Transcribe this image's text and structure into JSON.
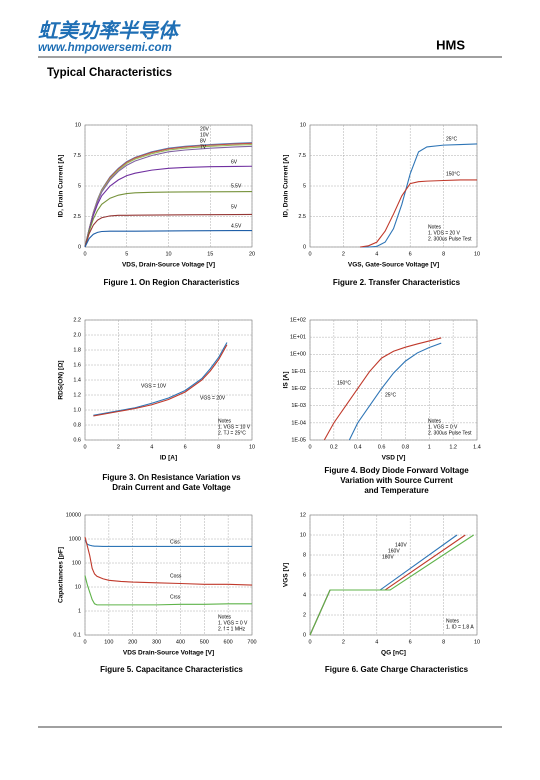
{
  "header": {
    "logo_cn": "虹美功率半导体",
    "website": "www.hmpowersemi.com",
    "part": "HMS"
  },
  "section_title": "Typical Characteristics",
  "chart_data": [
    {
      "type": "line",
      "caption": [
        "Figure 1. On Region Characteristics"
      ],
      "xlabel": "VDS, Drain-Source Voltage  [V]",
      "ylabel": "ID, Drain Current  [A]",
      "xlim": [
        0,
        20
      ],
      "ylim": [
        0,
        10
      ],
      "xticks": [
        0,
        5,
        10,
        15,
        20
      ],
      "yticks": [
        0,
        2.5,
        5,
        7.5,
        10
      ],
      "grid": true,
      "x": [
        0,
        0.5,
        1,
        1.5,
        2,
        3,
        4,
        5,
        6,
        8,
        10,
        12,
        15,
        18,
        20
      ],
      "series": [
        {
          "name": "20V",
          "color": "#4a7ebb",
          "values": [
            0,
            1.5,
            2.85,
            3.9,
            4.7,
            5.75,
            6.45,
            7.0,
            7.35,
            7.8,
            8.1,
            8.25,
            8.4,
            8.5,
            8.55
          ]
        },
        {
          "name": "10V",
          "color": "#c0504d",
          "values": [
            0,
            1.45,
            2.8,
            3.85,
            4.65,
            5.7,
            6.4,
            6.95,
            7.3,
            7.75,
            8.05,
            8.2,
            8.35,
            8.45,
            8.5
          ]
        },
        {
          "name": "8V",
          "color": "#9bbb59",
          "values": [
            0,
            1.45,
            2.75,
            3.8,
            4.6,
            5.6,
            6.3,
            6.85,
            7.2,
            7.65,
            7.95,
            8.1,
            8.25,
            8.35,
            8.4
          ]
        },
        {
          "name": "7V",
          "color": "#8064a2",
          "values": [
            0,
            1.4,
            2.7,
            3.7,
            4.5,
            5.5,
            6.2,
            6.7,
            7.05,
            7.5,
            7.8,
            7.95,
            8.1,
            8.2,
            8.25
          ]
        },
        {
          "name": "6V",
          "color": "#7030a0",
          "values": [
            0,
            1.4,
            2.6,
            3.5,
            4.2,
            5.0,
            5.5,
            5.85,
            6.05,
            6.3,
            6.45,
            6.52,
            6.58,
            6.6,
            6.62
          ]
        },
        {
          "name": "5.5V",
          "color": "#77933c",
          "values": [
            0,
            1.3,
            2.3,
            3.0,
            3.5,
            4.0,
            4.25,
            4.38,
            4.44,
            4.48,
            4.5,
            4.51,
            4.52,
            4.53,
            4.54
          ]
        },
        {
          "name": "5V",
          "color": "#953735",
          "values": [
            0,
            1.1,
            1.8,
            2.2,
            2.4,
            2.55,
            2.6,
            2.6,
            2.61,
            2.62,
            2.63,
            2.64,
            2.65,
            2.66,
            2.67
          ]
        },
        {
          "name": "4.5V",
          "color": "#1f5fa8",
          "values": [
            0,
            0.7,
            1.05,
            1.2,
            1.27,
            1.3,
            1.3,
            1.3,
            1.3,
            1.31,
            1.32,
            1.33,
            1.34,
            1.35,
            1.35
          ]
        }
      ]
    },
    {
      "type": "line",
      "caption": [
        "Figure 2. Transfer Characteristics"
      ],
      "xlabel": "VGS, Gate-Source Voltage [V]",
      "ylabel": "ID, Drain Current [A]",
      "xlim": [
        0,
        10
      ],
      "ylim": [
        0,
        10
      ],
      "xticks": [
        0,
        2,
        4,
        6,
        8,
        10
      ],
      "yticks": [
        0,
        2.5,
        5,
        7.5,
        10
      ],
      "grid": true,
      "x": [
        3,
        3.5,
        4,
        4.5,
        5,
        5.5,
        6,
        6.5,
        7,
        8,
        9,
        10
      ],
      "series": [
        {
          "name": "25°C",
          "color": "#2e75b6",
          "values": [
            0,
            0,
            0.05,
            0.4,
            1.5,
            3.5,
            6.0,
            7.8,
            8.2,
            8.35,
            8.4,
            8.45
          ]
        },
        {
          "name": "150°C",
          "color": "#c0392b",
          "values": [
            0,
            0.1,
            0.4,
            1.3,
            2.7,
            4.2,
            5.2,
            5.35,
            5.4,
            5.45,
            5.5,
            5.5
          ]
        }
      ],
      "notes": [
        "Notes",
        "1. VDS = 20 V",
        "2. 300us Pulse Test"
      ]
    },
    {
      "type": "line",
      "caption": [
        "Figure 3. On Resistance Variation vs",
        "Drain Current and Gate Voltage"
      ],
      "xlabel": "ID  [A]",
      "ylabel": "RDS(ON) [Ω]",
      "xlim": [
        0,
        10
      ],
      "ylim": [
        0.6,
        2.2
      ],
      "xticks": [
        0,
        2,
        4,
        6,
        8,
        10
      ],
      "yticks": [
        0.6,
        0.8,
        {
          "value": 1,
          "label": "1.0"
        },
        1.2,
        1.4,
        1.6,
        1.8,
        {
          "value": 2,
          "label": "2.0"
        },
        2.2
      ],
      "grid": true,
      "x": [
        0.5,
        1,
        2,
        3,
        4,
        5,
        6,
        7,
        7.5,
        8,
        8.2,
        8.5
      ],
      "series": [
        {
          "name": "VGS = 10V",
          "color": "#2e75b6",
          "values": [
            0.93,
            0.95,
            0.99,
            1.03,
            1.09,
            1.16,
            1.26,
            1.42,
            1.55,
            1.7,
            1.78,
            1.9
          ]
        },
        {
          "name": "VGS = 20V",
          "color": "#c0392b",
          "values": [
            0.92,
            0.94,
            0.98,
            1.02,
            1.07,
            1.14,
            1.24,
            1.4,
            1.52,
            1.67,
            1.75,
            1.87
          ]
        }
      ],
      "notes": [
        "Notes",
        "1. VGS = 10 V",
        "2. TJ = 25°C"
      ]
    },
    {
      "type": "line",
      "caption": [
        "Figure 4. Body Diode Forward Voltage",
        "Variation with Source Current",
        "and Temperature"
      ],
      "xlabel": "VSD [V]",
      "ylabel": "IS [A]",
      "xlim": [
        0,
        1.4
      ],
      "ylim": [
        1e-05,
        100
      ],
      "ylog": true,
      "xticks": [
        0,
        0.2,
        0.4,
        0.6,
        0.8,
        1,
        1.2,
        1.4
      ],
      "yticks": [
        {
          "value": 1e-05,
          "label": "1E-05"
        },
        {
          "value": 0.0001,
          "label": "1E-04"
        },
        {
          "value": 0.001,
          "label": "1E-03"
        },
        {
          "value": 0.01,
          "label": "1E-02"
        },
        {
          "value": 0.1,
          "label": "1E-01"
        },
        {
          "value": 1,
          "label": "1E+00"
        },
        {
          "value": 10,
          "label": "1E+01"
        },
        {
          "value": 100,
          "label": "1E+02"
        }
      ],
      "grid": true,
      "series": [
        {
          "name": "150°C",
          "color": "#c0392b",
          "x": [
            0.12,
            0.2,
            0.3,
            0.4,
            0.5,
            0.6,
            0.7,
            0.8,
            0.9,
            1.0,
            1.1
          ],
          "values": [
            1e-05,
            0.0001,
            0.001,
            0.01,
            0.1,
            0.6,
            1.5,
            2.6,
            4,
            6,
            9
          ]
        },
        {
          "name": "25°C",
          "color": "#2e75b6",
          "x": [
            0.33,
            0.4,
            0.5,
            0.6,
            0.7,
            0.8,
            0.9,
            1.0,
            1.1
          ],
          "values": [
            1e-05,
            0.0001,
            0.001,
            0.01,
            0.08,
            0.4,
            1.2,
            2.5,
            4.5
          ]
        }
      ],
      "notes": [
        "Notes",
        "1. VGS = 0 V",
        "2. 300us Pulse Test"
      ]
    },
    {
      "type": "line",
      "caption": [
        "Figure 5. Capacitance Characteristics"
      ],
      "xlabel": "VDS Drain-Source Voltage [V]",
      "ylabel": "Capacitances [pF]",
      "xlim": [
        0,
        700
      ],
      "ylim": [
        0.1,
        10000
      ],
      "ylog": true,
      "xticks": [
        0,
        100,
        200,
        300,
        400,
        500,
        600,
        700
      ],
      "yticks": [
        0.1,
        1,
        10,
        100,
        1000,
        10000
      ],
      "grid": true,
      "x": [
        0,
        10,
        20,
        30,
        40,
        50,
        75,
        100,
        150,
        200,
        300,
        400,
        500,
        600,
        700
      ],
      "series": [
        {
          "name": "Ciss",
          "color": "#2e75b6",
          "values": [
            900,
            600,
            550,
            520,
            500,
            500,
            490,
            490,
            490,
            490,
            490,
            490,
            490,
            490,
            490
          ]
        },
        {
          "name": "Coss",
          "color": "#c0392b",
          "values": [
            1200,
            500,
            200,
            60,
            35,
            28,
            22,
            19,
            17,
            16,
            15,
            14,
            13,
            13,
            12
          ]
        },
        {
          "name": "Crss",
          "color": "#5fb34a",
          "values": [
            30,
            12,
            6,
            3,
            2,
            1.8,
            1.8,
            1.8,
            1.8,
            1.8,
            1.8,
            1.9,
            1.9,
            2,
            2
          ]
        }
      ],
      "notes": [
        "Notes",
        "1. VGS = 0 V",
        "2. f = 1 MHz"
      ]
    },
    {
      "type": "line",
      "caption": [
        "Figure 6. Gate Charge Characteristics"
      ],
      "xlabel": "QG [nC]",
      "ylabel": "VGS [V]",
      "xlim": [
        0,
        10
      ],
      "ylim": [
        0,
        12
      ],
      "xticks": [
        0,
        2,
        4,
        6,
        8,
        10
      ],
      "yticks": [
        0,
        2,
        4,
        6,
        8,
        10,
        12
      ],
      "grid": true,
      "series": [
        {
          "name": "140V",
          "color": "#2e75b6",
          "x": [
            0,
            1.2,
            4.2,
            8.8
          ],
          "values": [
            0,
            4.5,
            4.5,
            10
          ]
        },
        {
          "name": "160V",
          "color": "#c0392b",
          "x": [
            0,
            1.2,
            4.5,
            9.3
          ],
          "values": [
            0,
            4.5,
            4.5,
            10
          ]
        },
        {
          "name": "180V",
          "color": "#5fb34a",
          "x": [
            0,
            1.2,
            4.8,
            9.8
          ],
          "values": [
            0,
            4.5,
            4.5,
            10
          ]
        }
      ],
      "notes": [
        "Notes",
        "1. ID = 1.8 A"
      ]
    }
  ]
}
